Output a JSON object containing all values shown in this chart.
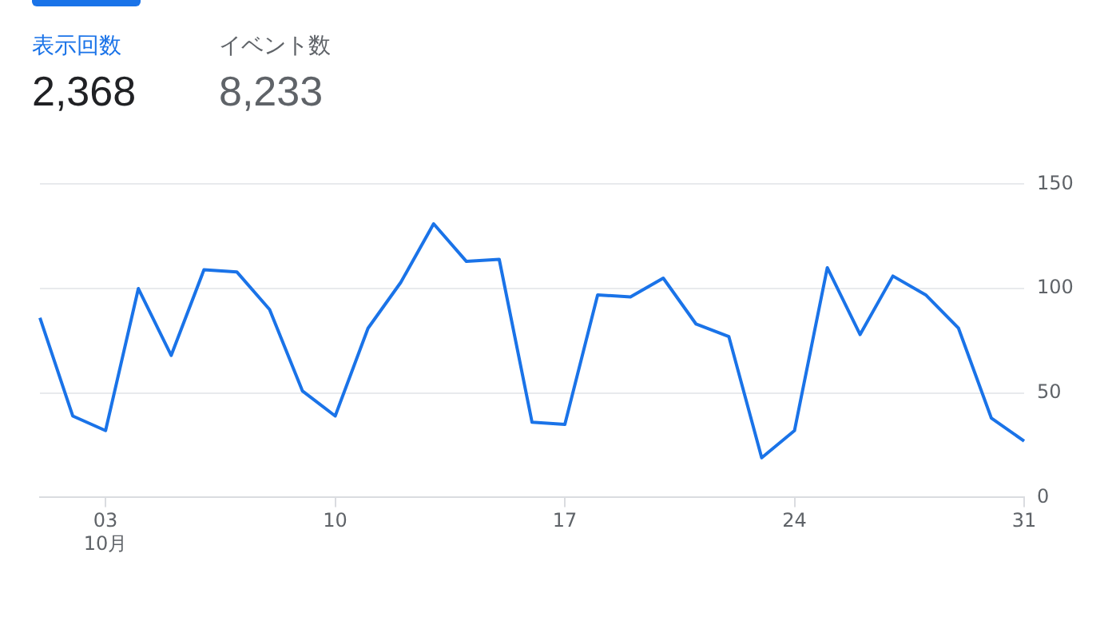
{
  "chart_data": {
    "type": "line",
    "annotations": [
      "表示回数",
      "2,368",
      "イベント数",
      "8,233"
    ],
    "categories": [
      null,
      null,
      "03\n10月",
      null,
      null,
      null,
      null,
      null,
      null,
      "10",
      null,
      null,
      null,
      null,
      null,
      null,
      "17",
      null,
      null,
      null,
      null,
      null,
      null,
      "24",
      null,
      null,
      null,
      null,
      null,
      null,
      "31"
    ],
    "series": [
      {
        "color": "#1a73e8",
        "values": [
          86,
          39,
          32,
          100,
          68,
          109,
          108,
          90,
          51,
          39,
          81,
          103,
          131,
          113,
          114,
          36,
          35,
          97,
          96,
          105,
          83,
          77,
          19,
          32,
          110,
          78,
          106,
          97,
          81,
          38,
          27
        ]
      }
    ],
    "ylim": [
      0,
      150
    ],
    "yticks": [
      0,
      50,
      100,
      150
    ],
    "grid": "y",
    "legend": false,
    "marker": "none",
    "line_style": "solid"
  }
}
